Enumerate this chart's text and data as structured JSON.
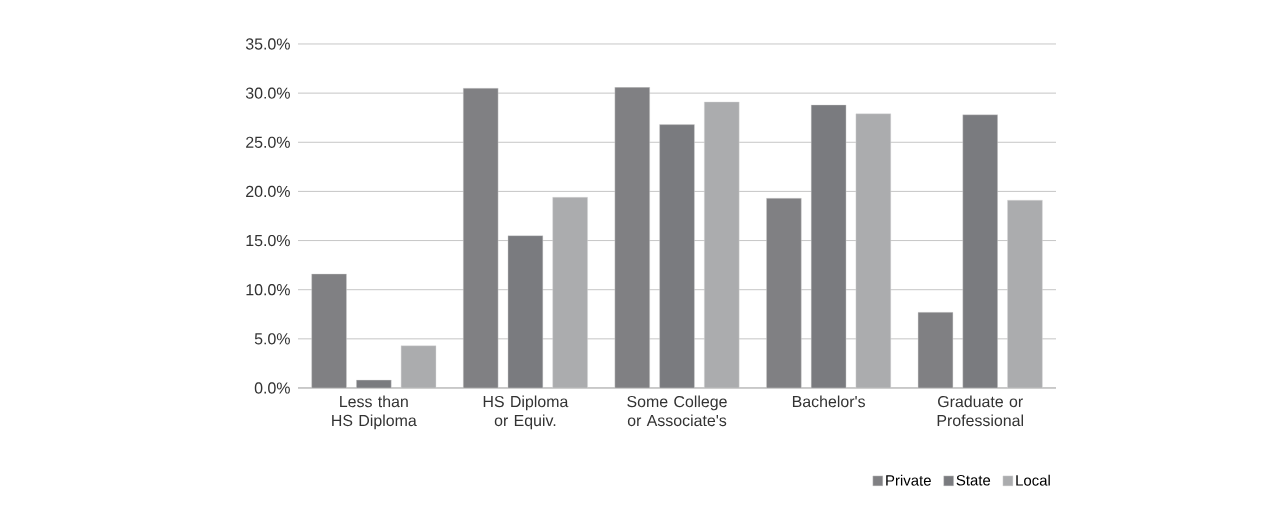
{
  "chart_data": {
    "type": "bar",
    "categories": [
      "Less than HS Diploma",
      "HS Diploma or Equiv.",
      "Some College or Associate's",
      "Bachelor's",
      "Graduate or Professional"
    ],
    "series": [
      {
        "name": "Private",
        "color": "#808083",
        "values": [
          11.6,
          30.5,
          30.6,
          19.3,
          7.7
        ]
      },
      {
        "name": "State",
        "color": "#7a7b7f",
        "values": [
          0.8,
          15.5,
          26.8,
          28.8,
          27.8
        ]
      },
      {
        "name": "Local",
        "color": "#abacae",
        "values": [
          4.3,
          19.4,
          29.1,
          27.9,
          19.1
        ]
      }
    ],
    "ylim": [
      0,
      35
    ],
    "yticks": [
      {
        "value": 0,
        "label": "0.0%"
      },
      {
        "value": 5,
        "label": "5.0%"
      },
      {
        "value": 10,
        "label": "10.0%"
      },
      {
        "value": 15,
        "label": "15.0%"
      },
      {
        "value": 20,
        "label": "20.0%"
      },
      {
        "value": 25,
        "label": "25.0%"
      },
      {
        "value": 30,
        "label": "30.0%"
      },
      {
        "value": 35,
        "label": "35.0%"
      }
    ],
    "grid": "y",
    "legend": "bottom"
  }
}
